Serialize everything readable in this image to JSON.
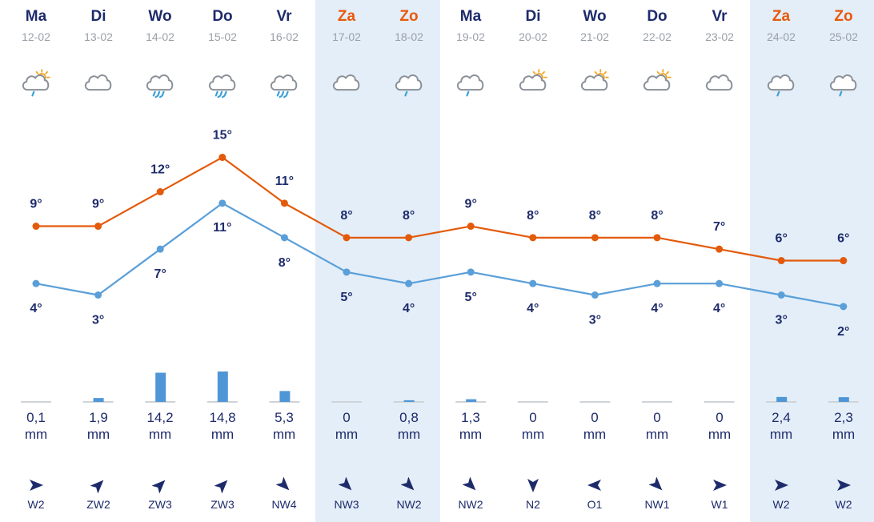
{
  "colors": {
    "max_line": "#e35a0b",
    "min_line": "#5a9fd8",
    "bar": "#4f96d6",
    "weekend_band": "#e3eef8",
    "text": "#1e2b6b",
    "weekend_text": "#e8590c",
    "date_text": "#9aa0a8"
  },
  "days": [
    {
      "name": "Ma",
      "date": "12-02",
      "weekend": false,
      "icon": "partly-sunny-drizzle-icon",
      "precip_value": "0,1",
      "precip_unit": "mm",
      "wind": "W2",
      "wind_dir": "W"
    },
    {
      "name": "Di",
      "date": "13-02",
      "weekend": false,
      "icon": "cloud-icon",
      "precip_value": "1,9",
      "precip_unit": "mm",
      "wind": "ZW2",
      "wind_dir": "ZW"
    },
    {
      "name": "Wo",
      "date": "14-02",
      "weekend": false,
      "icon": "heavy-rain-icon",
      "precip_value": "14,2",
      "precip_unit": "mm",
      "wind": "ZW3",
      "wind_dir": "ZW"
    },
    {
      "name": "Do",
      "date": "15-02",
      "weekend": false,
      "icon": "heavy-rain-icon",
      "precip_value": "14,8",
      "precip_unit": "mm",
      "wind": "ZW3",
      "wind_dir": "ZW"
    },
    {
      "name": "Vr",
      "date": "16-02",
      "weekend": false,
      "icon": "heavy-rain-icon",
      "precip_value": "5,3",
      "precip_unit": "mm",
      "wind": "NW4",
      "wind_dir": "NW"
    },
    {
      "name": "Za",
      "date": "17-02",
      "weekend": true,
      "icon": "cloud-icon",
      "precip_value": "0",
      "precip_unit": "mm",
      "wind": "NW3",
      "wind_dir": "NW"
    },
    {
      "name": "Zo",
      "date": "18-02",
      "weekend": true,
      "icon": "drizzle-icon",
      "precip_value": "0,8",
      "precip_unit": "mm",
      "wind": "NW2",
      "wind_dir": "NW"
    },
    {
      "name": "Ma",
      "date": "19-02",
      "weekend": false,
      "icon": "drizzle-icon",
      "precip_value": "1,3",
      "precip_unit": "mm",
      "wind": "NW2",
      "wind_dir": "NW"
    },
    {
      "name": "Di",
      "date": "20-02",
      "weekend": false,
      "icon": "partly-sunny-icon",
      "precip_value": "0",
      "precip_unit": "mm",
      "wind": "N2",
      "wind_dir": "N"
    },
    {
      "name": "Wo",
      "date": "21-02",
      "weekend": false,
      "icon": "partly-sunny-icon",
      "precip_value": "0",
      "precip_unit": "mm",
      "wind": "O1",
      "wind_dir": "O"
    },
    {
      "name": "Do",
      "date": "22-02",
      "weekend": false,
      "icon": "partly-sunny-icon",
      "precip_value": "0",
      "precip_unit": "mm",
      "wind": "NW1",
      "wind_dir": "NW"
    },
    {
      "name": "Vr",
      "date": "23-02",
      "weekend": false,
      "icon": "cloud-icon",
      "precip_value": "0",
      "precip_unit": "mm",
      "wind": "W1",
      "wind_dir": "W"
    },
    {
      "name": "Za",
      "date": "24-02",
      "weekend": true,
      "icon": "drizzle-icon",
      "precip_value": "2,4",
      "precip_unit": "mm",
      "wind": "W2",
      "wind_dir": "W"
    },
    {
      "name": "Zo",
      "date": "25-02",
      "weekend": true,
      "icon": "drizzle-icon",
      "precip_value": "2,3",
      "precip_unit": "mm",
      "wind": "W2",
      "wind_dir": "W"
    }
  ],
  "chart_data": {
    "type": "line",
    "categories": [
      "12-02",
      "13-02",
      "14-02",
      "15-02",
      "16-02",
      "17-02",
      "18-02",
      "19-02",
      "20-02",
      "21-02",
      "22-02",
      "23-02",
      "24-02",
      "25-02"
    ],
    "series": [
      {
        "key": "max",
        "values": [
          9,
          9,
          12,
          15,
          11,
          8,
          8,
          9,
          8,
          8,
          8,
          7,
          6,
          6
        ],
        "labels": [
          "9°",
          "9°",
          "12°",
          "15°",
          "11°",
          "8°",
          "8°",
          "9°",
          "8°",
          "8°",
          "8°",
          "7°",
          "6°",
          "6°"
        ]
      },
      {
        "key": "min",
        "values": [
          4,
          3,
          7,
          11,
          8,
          5,
          4,
          5,
          4,
          3,
          4,
          4,
          3,
          2
        ],
        "labels": [
          "4°",
          "3°",
          "7°",
          "11°",
          "8°",
          "5°",
          "4°",
          "5°",
          "4°",
          "3°",
          "4°",
          "4°",
          "3°",
          "2°"
        ]
      }
    ],
    "precipitation": [
      0.1,
      1.9,
      14.2,
      14.8,
      5.3,
      0,
      0.8,
      1.3,
      0,
      0,
      0,
      0,
      2.4,
      2.3
    ],
    "grid": false,
    "legend": "none"
  }
}
